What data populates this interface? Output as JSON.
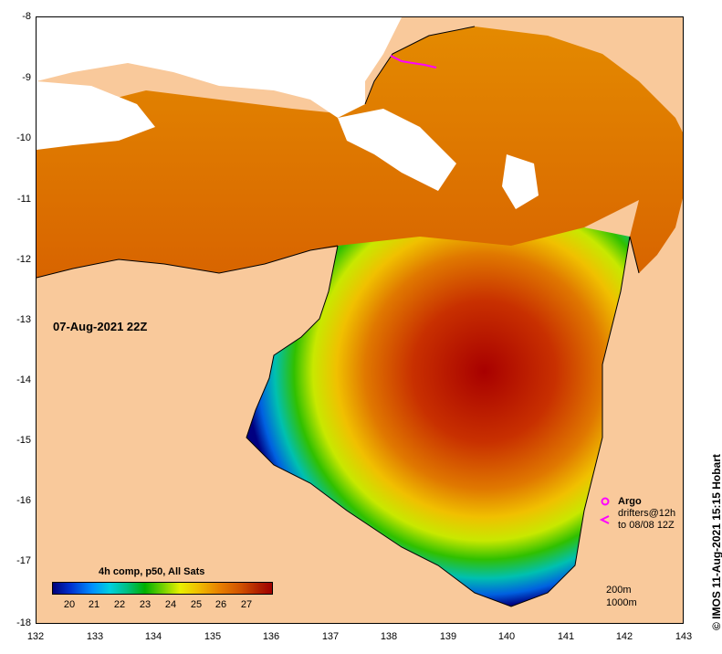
{
  "map": {
    "timestamp": "07-Aug-2021 22Z",
    "credit": "© IMOS 11-Aug-2021 15:15 Hobart",
    "x_ticks": [
      "132",
      "133",
      "134",
      "135",
      "136",
      "137",
      "138",
      "139",
      "140",
      "141",
      "142",
      "143"
    ],
    "y_ticks": [
      "-8",
      "-9",
      "-10",
      "-11",
      "-12",
      "-13",
      "-14",
      "-15",
      "-16",
      "-17",
      "-18"
    ],
    "colorbar": {
      "title": "4h comp, p50, All Sats",
      "ticks": [
        "20",
        "21",
        "22",
        "23",
        "24",
        "25",
        "26",
        "27"
      ]
    },
    "legend": {
      "argo_label": "Argo",
      "drifters_line1": "drifters@12h",
      "drifters_line2": "to 08/08 12Z"
    },
    "depth_contours": [
      "200m",
      "1000m"
    ],
    "colors": {
      "land": "#f9c99b",
      "no_data": "#ffffff",
      "argo_marker": "#ff00ff"
    }
  }
}
